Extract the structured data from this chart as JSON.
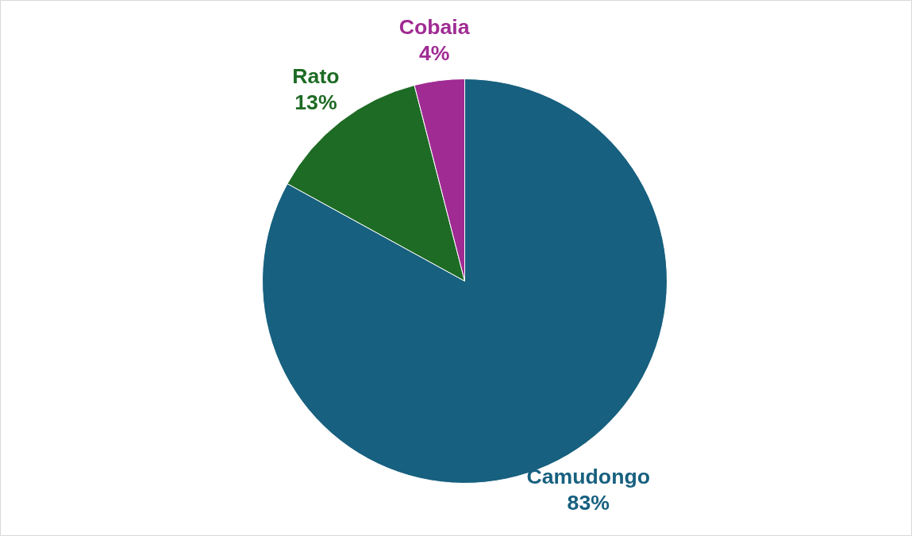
{
  "chart_data": {
    "type": "pie",
    "categories": [
      "Camudongo",
      "Rato",
      "Cobaia"
    ],
    "values": [
      83,
      13,
      4
    ],
    "colors": [
      "#17607f",
      "#1e6b25",
      "#a02b93"
    ],
    "value_labels": [
      "83%",
      "13%",
      "4%"
    ]
  }
}
